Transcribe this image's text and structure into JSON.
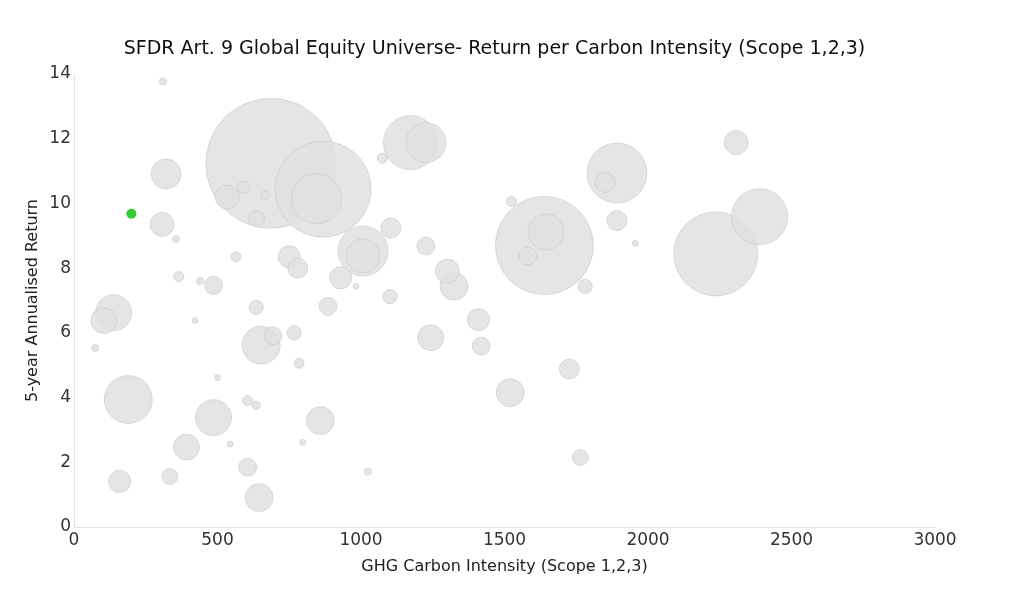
{
  "chart_data": {
    "type": "bubble",
    "title": "SFDR Art. 9 Global Equity Universe- Return per Carbon Intensity (Scope 1,2,3)",
    "xlabel": "GHG Carbon Intensity (Scope 1,2,3)",
    "ylabel": "5-year Annualised Return",
    "xlim": [
      0,
      3000
    ],
    "xticks": [
      0,
      500,
      1000,
      1500,
      2000,
      2500,
      3000
    ],
    "ylim": [
      0,
      14
    ],
    "yticks": [
      0,
      2,
      4,
      6,
      8,
      10,
      12,
      14
    ],
    "grid": false,
    "legend": false,
    "series": [
      {
        "color": "#e1e1e1",
        "x": [
          310,
          321,
          307,
          686,
          868,
          845,
          534,
          591,
          666,
          636,
          1074,
          355,
          564,
          750,
          780,
          365,
          439,
          486,
          929,
          983,
          1007,
          1007,
          1104,
          1172,
          1226,
          1892,
          1851,
          1524,
          1892,
          1956,
          1639,
          1645,
          1581,
          1781,
          1226,
          1301,
          1324,
          1101,
          2307,
          2389,
          2236,
          138,
          104,
          74,
          422,
          635,
          885,
          652,
          693,
          767,
          784,
          500,
          189,
          486,
          605,
          635,
          858,
          392,
          544,
          797,
          605,
          159,
          334,
          645,
          1024,
          1409,
          1243,
          1419,
          1726,
          1520,
          1764
        ],
        "values": [
          13.77,
          10.91,
          9.35,
          11.24,
          10.44,
          10.15,
          10.2,
          10.5,
          10.26,
          9.53,
          11.4,
          8.9,
          8.35,
          8.35,
          8.0,
          7.74,
          7.6,
          7.47,
          7.7,
          7.44,
          8.53,
          8.38,
          9.24,
          11.88,
          11.88,
          10.94,
          10.65,
          10.06,
          9.47,
          8.77,
          8.7,
          9.12,
          8.38,
          7.44,
          8.68,
          7.91,
          7.44,
          7.12,
          11.88,
          9.59,
          8.44,
          6.62,
          6.38,
          5.53,
          6.38,
          6.79,
          6.82,
          5.62,
          5.91,
          6.0,
          5.06,
          4.62,
          3.94,
          3.38,
          3.91,
          3.76,
          3.29,
          2.47,
          2.56,
          2.62,
          1.85,
          1.41,
          1.56,
          0.91,
          1.71,
          6.41,
          5.85,
          5.59,
          4.88,
          4.15,
          2.15
        ],
        "sizes": [
          0.003,
          0.053,
          0.034,
          1,
          0.545,
          0.148,
          0.034,
          0.009,
          0.004,
          0.015,
          0.006,
          0.003,
          0.006,
          0.029,
          0.024,
          0.006,
          0.003,
          0.019,
          0.029,
          0.002,
          0.148,
          0.068,
          0.024,
          0.173,
          0.095,
          0.213,
          0.024,
          0.006,
          0.024,
          0.002,
          0.568,
          0.077,
          0.019,
          0.012,
          0.019,
          0.034,
          0.046,
          0.012,
          0.034,
          0.186,
          0.418,
          0.077,
          0.04,
          0.003,
          0.002,
          0.012,
          0.019,
          0.085,
          0.019,
          0.012,
          0.006,
          0.002,
          0.136,
          0.077,
          0.006,
          0.004,
          0.046,
          0.04,
          0.002,
          0.002,
          0.019,
          0.029,
          0.015,
          0.046,
          0.003,
          0.029,
          0.04,
          0.019,
          0.024,
          0.046,
          0.015
        ]
      },
      {
        "type": "scatter",
        "color": "#33cc33",
        "x": [
          200
        ],
        "values": [
          9.68
        ]
      }
    ]
  }
}
